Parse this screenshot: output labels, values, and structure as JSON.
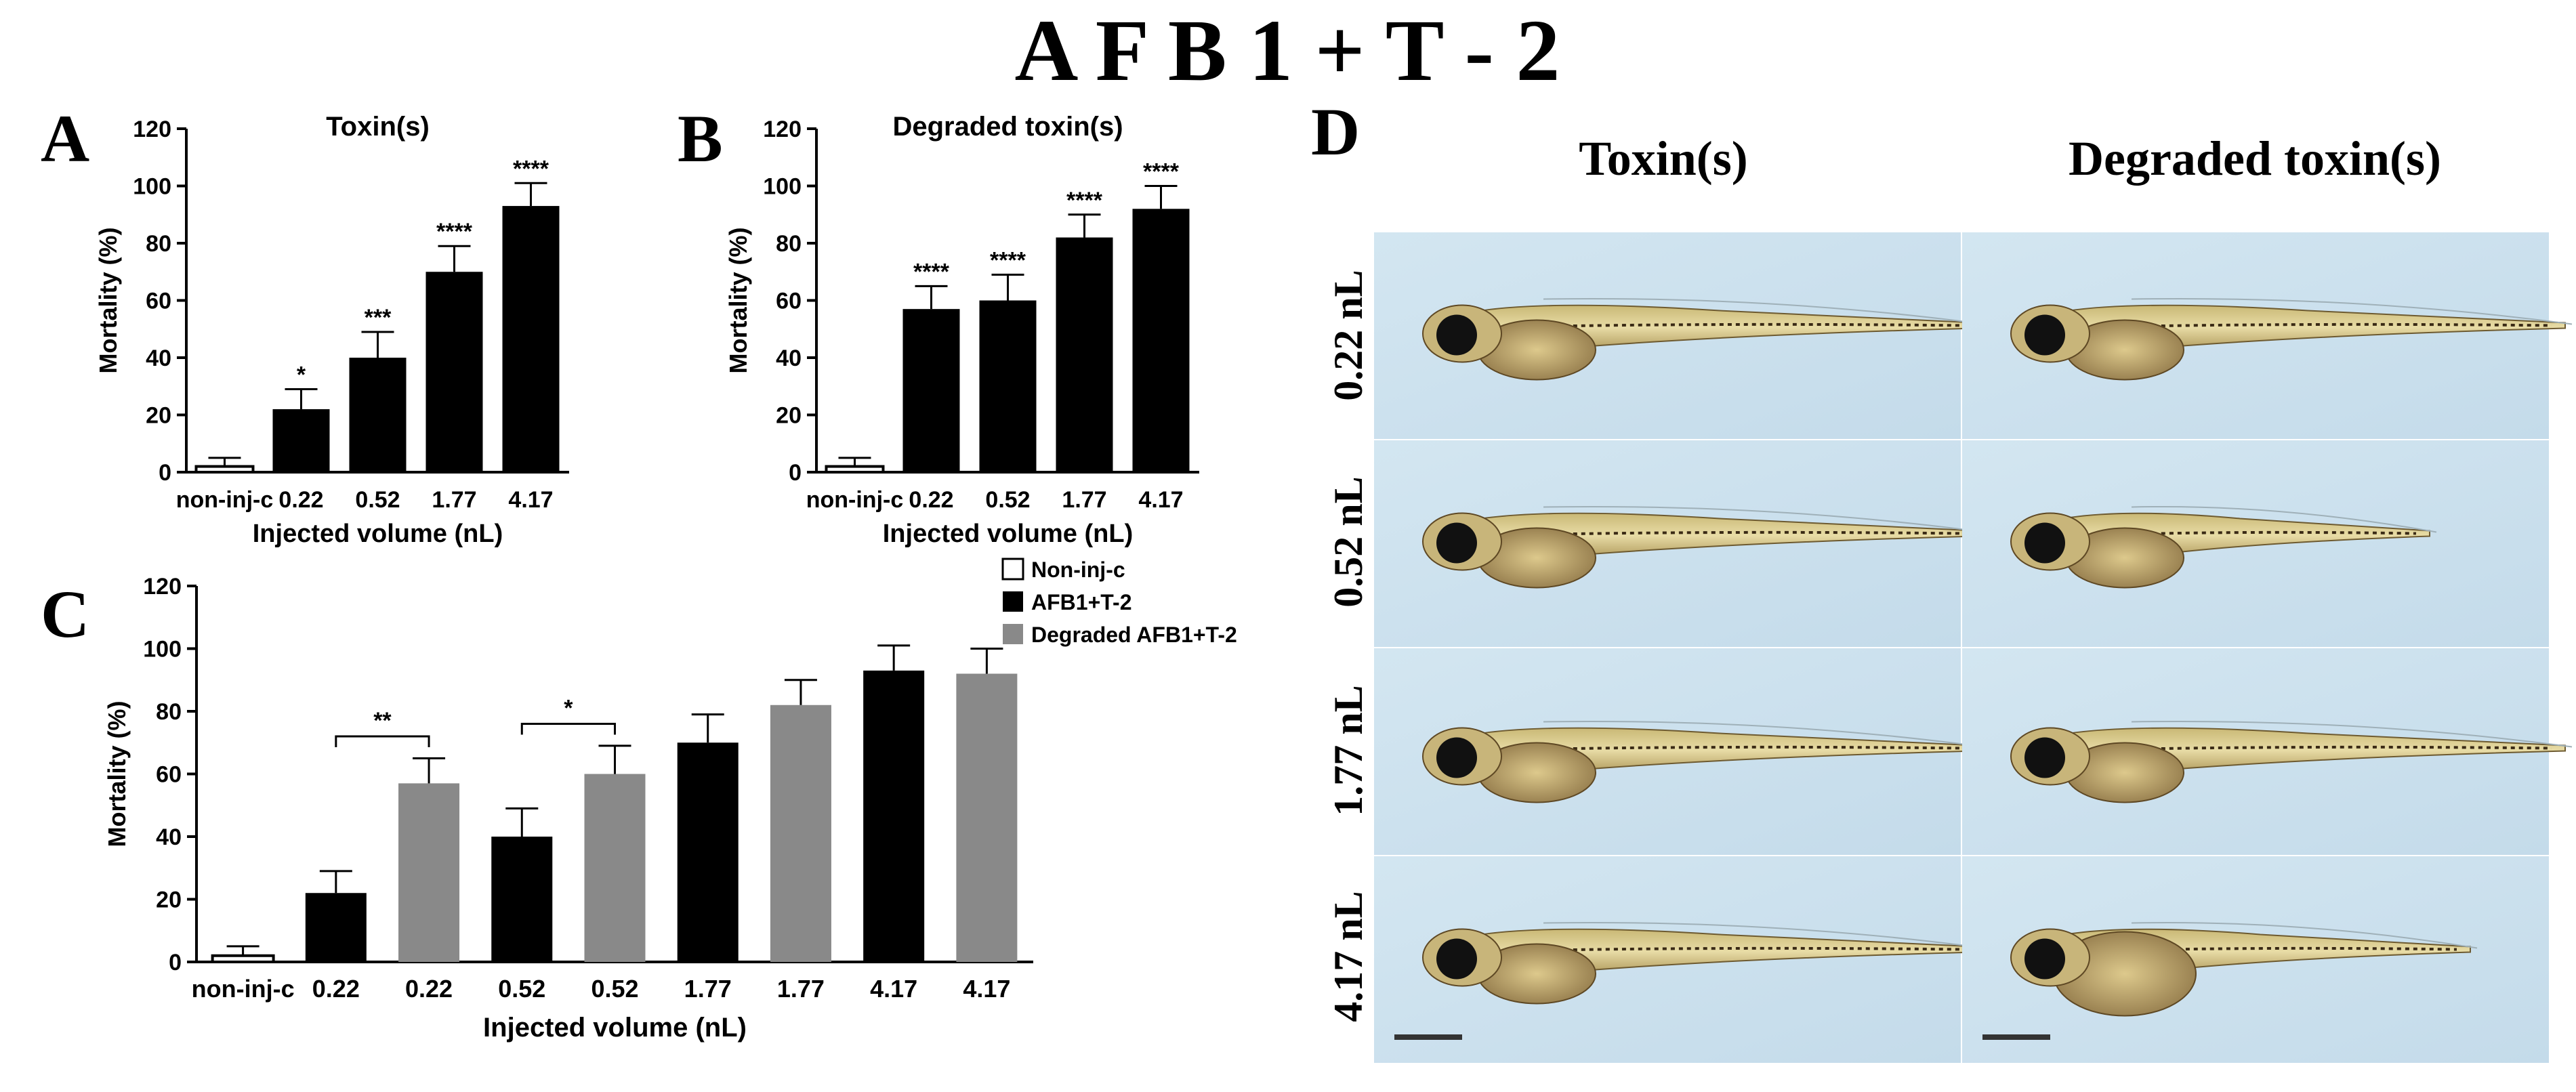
{
  "figure": {
    "main_title": "A F B 1 + T - 2",
    "panel_letters": {
      "A": "A",
      "B": "B",
      "C": "C",
      "D": "D"
    }
  },
  "colors": {
    "toxin": "#000000",
    "degraded": "#898989",
    "control": "#ffffff",
    "axis": "#000000"
  },
  "chart_data": [
    {
      "id": "A",
      "type": "bar",
      "title": "Toxin(s)",
      "xlabel": "Injected volume (nL)",
      "ylabel": "Mortality (%)",
      "ylim": [
        0,
        120
      ],
      "yticks": [
        0,
        20,
        40,
        60,
        80,
        100,
        120
      ],
      "grid": false,
      "categories": [
        "non-inj-c",
        "0.22",
        "0.52",
        "1.77",
        "4.17"
      ],
      "values": [
        2,
        22,
        40,
        70,
        93
      ],
      "errors": [
        3,
        7,
        9,
        9,
        8
      ],
      "significance": [
        "",
        "*",
        "***",
        "****",
        "****"
      ],
      "fills": [
        "control",
        "toxin",
        "toxin",
        "toxin",
        "toxin"
      ]
    },
    {
      "id": "B",
      "type": "bar",
      "title": "Degraded toxin(s)",
      "xlabel": "Injected volume (nL)",
      "ylabel": "Mortality (%)",
      "ylim": [
        0,
        120
      ],
      "yticks": [
        0,
        20,
        40,
        60,
        80,
        100,
        120
      ],
      "grid": false,
      "categories": [
        "non-inj-c",
        "0.22",
        "0.52",
        "1.77",
        "4.17"
      ],
      "values": [
        2,
        57,
        60,
        82,
        92
      ],
      "errors": [
        3,
        8,
        9,
        8,
        8
      ],
      "significance": [
        "",
        "****",
        "****",
        "****",
        "****"
      ],
      "fills": [
        "control",
        "toxin",
        "toxin",
        "toxin",
        "toxin"
      ]
    },
    {
      "id": "C",
      "type": "bar",
      "title": "",
      "xlabel": "Injected volume (nL)",
      "ylabel": "Mortality (%)",
      "ylim": [
        0,
        120
      ],
      "yticks": [
        0,
        20,
        40,
        60,
        80,
        100,
        120
      ],
      "grid": false,
      "categories": [
        "non-inj-c",
        "0.22",
        "0.22",
        "0.52",
        "0.52",
        "1.77",
        "1.77",
        "4.17",
        "4.17"
      ],
      "values": [
        2,
        22,
        57,
        40,
        60,
        70,
        82,
        93,
        92
      ],
      "errors": [
        3,
        7,
        8,
        9,
        9,
        9,
        8,
        8,
        8
      ],
      "fills": [
        "control",
        "toxin",
        "degraded",
        "toxin",
        "degraded",
        "toxin",
        "degraded",
        "toxin",
        "degraded"
      ],
      "legend": {
        "position": "top-right",
        "entries": [
          {
            "label": "Non-inj-c",
            "fill": "control"
          },
          {
            "label": "AFB1+T-2",
            "fill": "toxin"
          },
          {
            "label": "Degraded AFB1+T-2",
            "fill": "degraded"
          }
        ]
      },
      "comparisons": [
        {
          "from": 1,
          "to": 2,
          "label": "**",
          "y": 72
        },
        {
          "from": 3,
          "to": 4,
          "label": "*",
          "y": 76
        }
      ]
    }
  ],
  "panel_d": {
    "column_headers": [
      "Toxin(s)",
      "Degraded toxin(s)"
    ],
    "row_labels": [
      "0.22 nL",
      "0.52 nL",
      "1.77 nL",
      "4.17 nL"
    ],
    "image_description_kind": "zebrafish larvae micrographs",
    "scale_bar": true,
    "larvae": [
      [
        {
          "condition": "normal"
        },
        {
          "condition": "normal"
        }
      ],
      [
        {
          "condition": "normal"
        },
        {
          "condition": "shortened"
        }
      ],
      [
        {
          "condition": "normal"
        },
        {
          "condition": "normal"
        }
      ],
      [
        {
          "condition": "normal"
        },
        {
          "condition": "deformed"
        }
      ]
    ]
  }
}
